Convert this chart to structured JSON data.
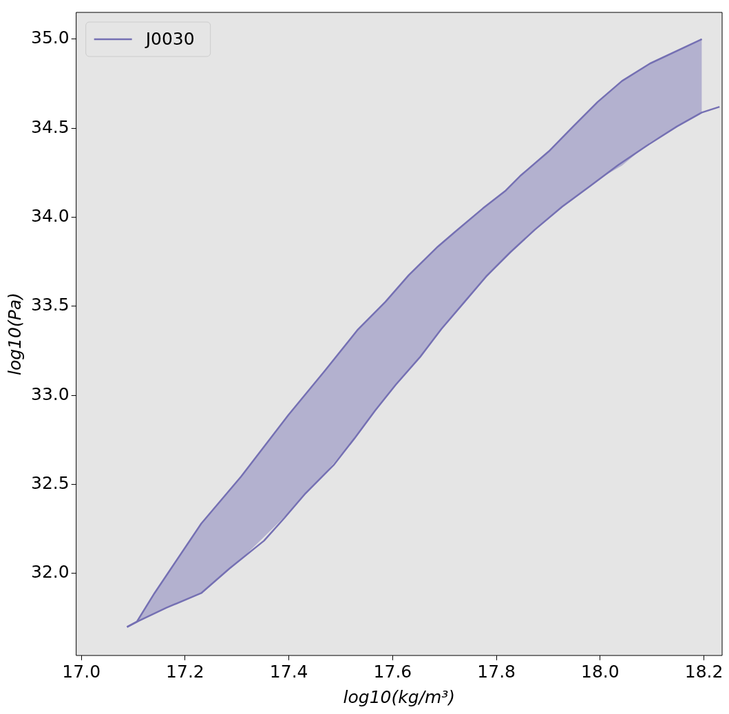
{
  "chart_data": {
    "type": "line",
    "xlabel": "log10(kg/m³)",
    "ylabel": "log10(Pa)",
    "xlim": [
      16.99,
      18.235
    ],
    "ylim": [
      31.54,
      35.15
    ],
    "xticks": [
      {
        "value": 17.0,
        "label": "17.0"
      },
      {
        "value": 17.2,
        "label": "17.2"
      },
      {
        "value": 17.4,
        "label": "17.4"
      },
      {
        "value": 17.6,
        "label": "17.6"
      },
      {
        "value": 17.8,
        "label": "17.8"
      },
      {
        "value": 18.0,
        "label": "18.0"
      },
      {
        "value": 18.2,
        "label": "18.2"
      }
    ],
    "yticks": [
      {
        "value": 32.0,
        "label": "32.0"
      },
      {
        "value": 32.5,
        "label": "32.5"
      },
      {
        "value": 33.0,
        "label": "33.0"
      },
      {
        "value": 33.5,
        "label": "33.5"
      },
      {
        "value": 34.0,
        "label": "34.0"
      },
      {
        "value": 34.5,
        "label": "34.5"
      },
      {
        "value": 35.0,
        "label": "35.0"
      }
    ],
    "grid": false,
    "legend": "top left",
    "marker": "none",
    "line_style": "solid",
    "series": [
      {
        "name": "J0030",
        "color": "#7570b3",
        "x": [
          17.088,
          17.107,
          17.141,
          17.231,
          17.308,
          17.399,
          17.469,
          17.533,
          17.586,
          17.631,
          17.687,
          17.721,
          17.774,
          17.818,
          17.847,
          17.901,
          17.948,
          17.995,
          18.042,
          18.096,
          18.196
        ],
        "values": [
          31.7,
          31.73,
          31.89,
          32.28,
          32.545,
          32.89,
          33.137,
          33.37,
          33.525,
          33.675,
          33.835,
          33.92,
          34.05,
          34.15,
          34.235,
          34.37,
          34.51,
          34.647,
          34.765,
          34.863,
          35.0
        ],
        "upper": [
          31.7,
          31.73,
          31.89,
          32.28,
          32.545,
          32.89,
          33.137,
          33.37,
          33.525,
          33.675,
          33.835,
          33.92,
          34.05,
          34.15,
          34.235,
          34.37,
          34.51,
          34.647,
          34.765,
          34.863,
          35.0
        ],
        "lower": [
          31.7,
          31.73,
          31.78,
          31.89,
          32.08,
          32.34,
          32.56,
          32.78,
          32.99,
          33.14,
          33.35,
          33.46,
          33.64,
          33.78,
          33.86,
          34.0,
          34.1,
          34.21,
          34.29,
          34.42,
          34.59
        ]
      },
      {
        "type": "line",
        "color": "#7570b3",
        "x": [
          17.088,
          17.111,
          17.164,
          17.231,
          17.285,
          17.352,
          17.392,
          17.432,
          17.486,
          17.526,
          17.566,
          17.606,
          17.653,
          17.694,
          17.74,
          17.78,
          17.827,
          17.874,
          17.927,
          17.981,
          18.035,
          18.094,
          18.148,
          18.196,
          18.23
        ],
        "values": [
          31.7,
          31.735,
          31.808,
          31.89,
          32.027,
          32.184,
          32.314,
          32.45,
          32.608,
          32.757,
          32.914,
          33.06,
          33.216,
          33.373,
          33.53,
          33.667,
          33.804,
          33.93,
          34.06,
          34.176,
          34.294,
          34.41,
          34.51,
          34.588,
          34.62
        ]
      }
    ]
  }
}
